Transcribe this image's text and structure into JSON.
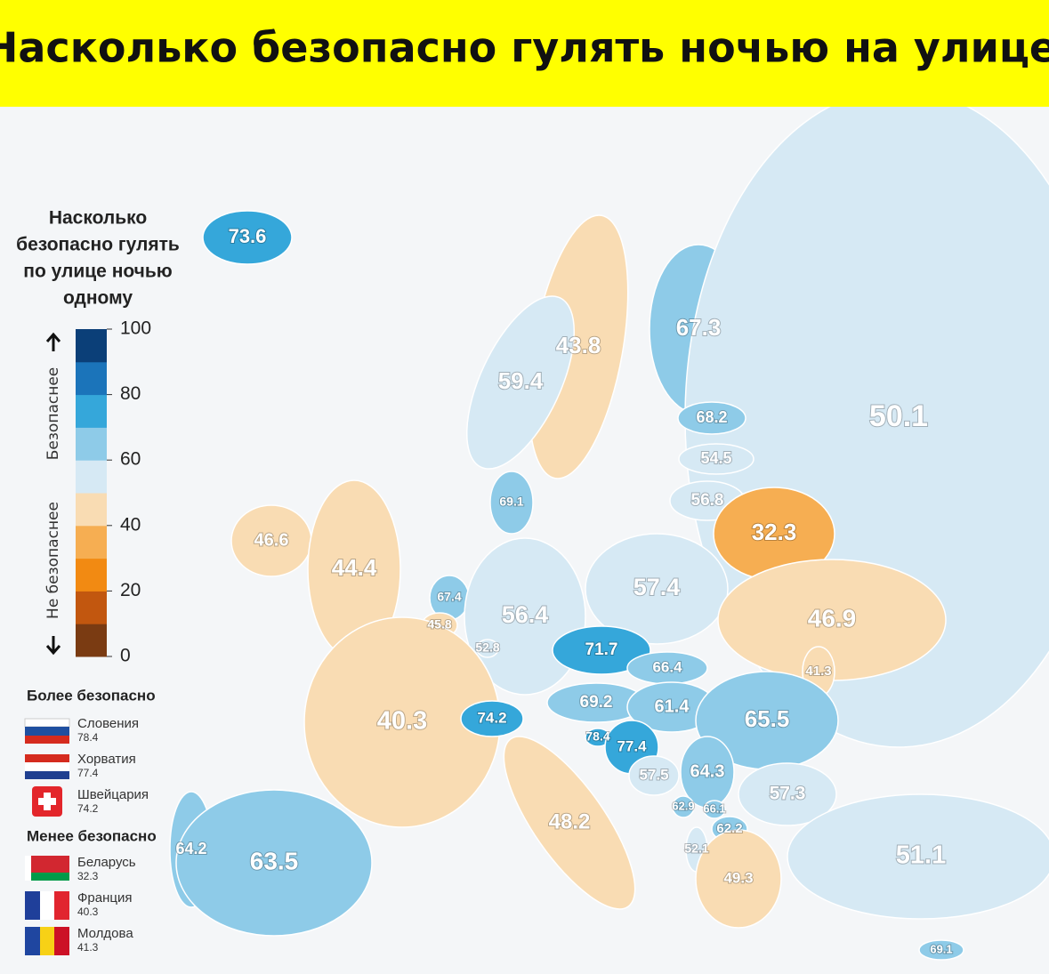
{
  "title": "Насколько безопасно гулять ночью на улице",
  "legend": {
    "title": [
      "Насколько",
      "безопасно гулять",
      "по улице ночью",
      "одному"
    ],
    "up_label": "Безопаснее",
    "down_label": "Не безопаснее",
    "lim": [
      0,
      100
    ],
    "ticks": [
      0,
      20,
      40,
      60,
      80,
      100
    ],
    "colors": [
      "#7a3b12",
      "#c2570f",
      "#f28a12",
      "#f6ae52",
      "#f9dcb3",
      "#d6e9f4",
      "#8ecbe8",
      "#35a7da",
      "#1b74ba",
      "#0b3f78"
    ]
  },
  "safest": {
    "title": "Более безопасно",
    "items": [
      {
        "name": "Словения",
        "value": 78.4
      },
      {
        "name": "Хорватия",
        "value": 77.4
      },
      {
        "name": "Швейцария",
        "value": 74.2
      }
    ]
  },
  "least_safe": {
    "title": "Менее безопасно",
    "items": [
      {
        "name": "Беларусь",
        "value": 32.3
      },
      {
        "name": "Франция",
        "value": 40.3
      },
      {
        "name": "Молдова",
        "value": 41.3
      }
    ]
  },
  "map": {
    "values": [
      73.6,
      67.3,
      43.8,
      59.4,
      50.1,
      68.2,
      54.5,
      56.8,
      69.1,
      32.3,
      46.6,
      44.4,
      67.4,
      57.4,
      56.4,
      46.9,
      45.8,
      52.8,
      71.7,
      41.3,
      66.4,
      69.2,
      61.4,
      65.5,
      40.3,
      74.2,
      78.4,
      77.4,
      57.5,
      64.3,
      57.3,
      62.9,
      66.1,
      62.2,
      48.2,
      64.2,
      63.5,
      52.1,
      49.3,
      51.1,
      69.1
    ]
  }
}
